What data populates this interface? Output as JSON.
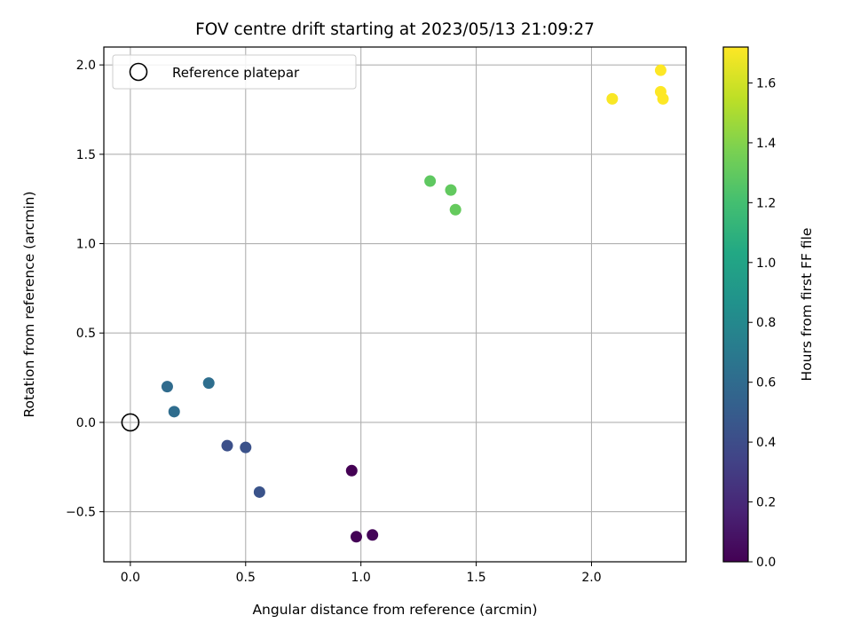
{
  "chart_data": {
    "type": "scatter",
    "title": "FOV centre drift starting at 2023/05/13 21:09:27",
    "xlabel": "Angular distance from reference (arcmin)",
    "ylabel": "Rotation from reference (arcmin)",
    "xlim": [
      -0.115,
      2.41
    ],
    "ylim": [
      -0.78,
      2.1
    ],
    "xticks": [
      0.0,
      0.5,
      1.0,
      1.5,
      2.0
    ],
    "xtick_labels": [
      "0.0",
      "0.5",
      "1.0",
      "1.5",
      "2.0"
    ],
    "yticks": [
      -0.5,
      0.0,
      0.5,
      1.0,
      1.5,
      2.0
    ],
    "ytick_labels": [
      "−0.5",
      "0.0",
      "0.5",
      "1.0",
      "1.5",
      "2.0"
    ],
    "grid": true,
    "legend": {
      "position": "top-left",
      "entries": [
        "Reference platepar"
      ]
    },
    "reference_point": {
      "x": 0.0,
      "y": 0.0,
      "marker": "hollow-circle"
    },
    "colormap": "viridis",
    "colorbar": {
      "label": "Hours from first FF file",
      "range": [
        0.0,
        1.72
      ],
      "ticks": [
        0.0,
        0.2,
        0.4,
        0.6,
        0.8,
        1.0,
        1.2,
        1.4,
        1.6
      ],
      "tick_labels": [
        "0.0",
        "0.2",
        "0.4",
        "0.6",
        "0.8",
        "1.0",
        "1.2",
        "1.4",
        "1.6"
      ]
    },
    "points": [
      {
        "x": 0.96,
        "y": -0.27,
        "hours": 0.0
      },
      {
        "x": 0.98,
        "y": -0.64,
        "hours": 0.01
      },
      {
        "x": 1.05,
        "y": -0.63,
        "hours": 0.02
      },
      {
        "x": 0.42,
        "y": -0.13,
        "hours": 0.42
      },
      {
        "x": 0.5,
        "y": -0.14,
        "hours": 0.43
      },
      {
        "x": 0.56,
        "y": -0.39,
        "hours": 0.44
      },
      {
        "x": 0.16,
        "y": 0.2,
        "hours": 0.6
      },
      {
        "x": 0.19,
        "y": 0.06,
        "hours": 0.61
      },
      {
        "x": 0.34,
        "y": 0.22,
        "hours": 0.62
      },
      {
        "x": 1.3,
        "y": 1.35,
        "hours": 1.29
      },
      {
        "x": 1.39,
        "y": 1.3,
        "hours": 1.3
      },
      {
        "x": 1.41,
        "y": 1.19,
        "hours": 1.31
      },
      {
        "x": 2.09,
        "y": 1.81,
        "hours": 1.71
      },
      {
        "x": 2.3,
        "y": 1.97,
        "hours": 1.72
      },
      {
        "x": 2.3,
        "y": 1.85,
        "hours": 1.72
      },
      {
        "x": 2.31,
        "y": 1.81,
        "hours": 1.72
      }
    ]
  }
}
